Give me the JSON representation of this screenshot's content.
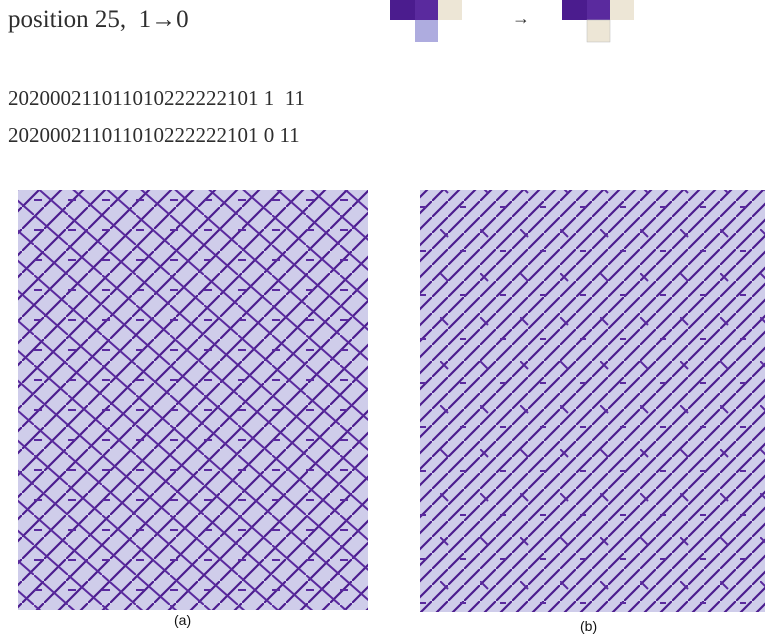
{
  "header": {
    "label": "position 25,  1→0",
    "arrow": "→"
  },
  "sequences": [
    "202000211011010222222101 1  11",
    "202000211011010222222101 0 11"
  ],
  "panels": [
    {
      "caption": "(a)"
    },
    {
      "caption": "(b)"
    }
  ]
}
